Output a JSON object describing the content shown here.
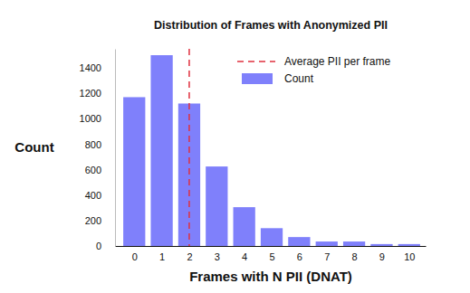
{
  "chart_data": {
    "type": "bar",
    "title": "Distribution of Frames with Anonymized PII",
    "x_label": "Frames with N PII (DNAT)",
    "y_label": "Count",
    "x": [
      0,
      1,
      2,
      3,
      4,
      5,
      6,
      7,
      8,
      9,
      10
    ],
    "series": [
      {
        "name": "Count",
        "color": "#7f80fb",
        "values": [
          1170,
          1500,
          1120,
          625,
          305,
          140,
          70,
          35,
          35,
          15,
          15
        ]
      }
    ],
    "average_line": {
      "name": "Average PII per frame",
      "value": 2,
      "color": "#e0303f",
      "line_style": "dashed"
    },
    "xlim": [
      -0.7,
      10.6
    ],
    "xticks": [
      0,
      1,
      2,
      3,
      4,
      5,
      6,
      7,
      8,
      9,
      10
    ],
    "ylim": [
      0,
      1550
    ],
    "yticks": [
      0,
      200,
      400,
      600,
      800,
      1000,
      1200,
      1400
    ],
    "grid": false,
    "legend": "upper right",
    "data_labels": false
  }
}
